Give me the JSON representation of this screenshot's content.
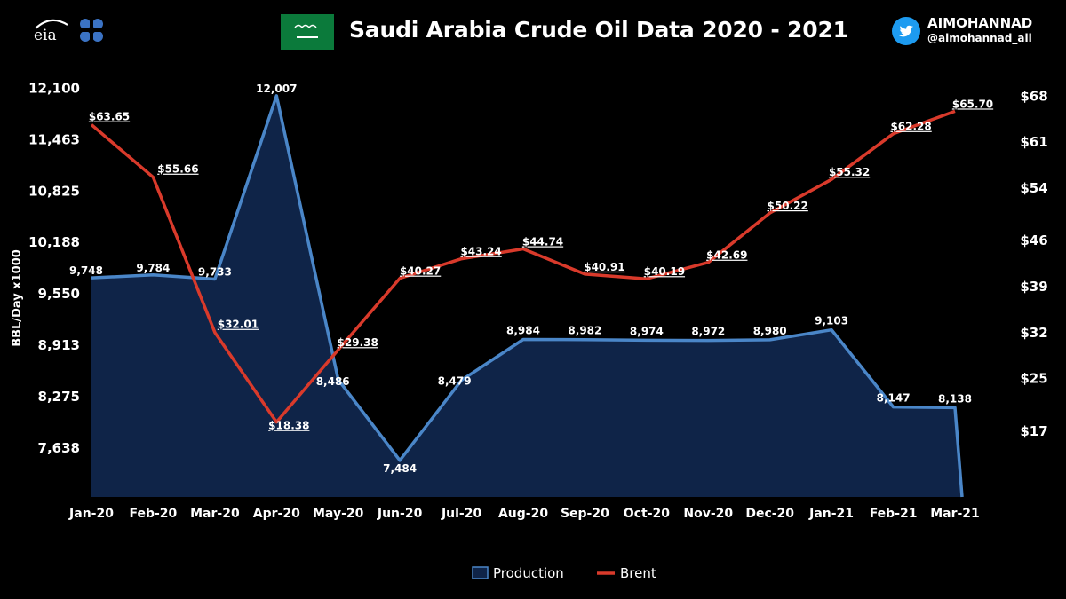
{
  "header": {
    "title": "Saudi Arabia Crude Oil Data 2020 - 2021",
    "author_name": "AIMOHANNAD",
    "author_handle": "@almohannad_ali"
  },
  "logos": {
    "eia_text": "eia",
    "flag_color": "#0b7a3b"
  },
  "chart_data": {
    "type": "line",
    "title": "Saudi Arabia Crude Oil Data 2020 - 2021",
    "categories": [
      "Jan-20",
      "Feb-20",
      "Mar-20",
      "Apr-20",
      "May-20",
      "Jun-20",
      "Jul-20",
      "Aug-20",
      "Sep-20",
      "Oct-20",
      "Nov-20",
      "Dec-20",
      "Jan-21",
      "Feb-21",
      "Mar-21"
    ],
    "ylabel": "BBL/Day x1000",
    "y_left": {
      "ticks": [
        "12,100",
        "11,463",
        "10,825",
        "10,188",
        "9,550",
        "8,913",
        "8,275",
        "7,638"
      ],
      "range": [
        7000,
        12100
      ]
    },
    "y_right": {
      "ticks": [
        "$68",
        "$61",
        "$54",
        "$46",
        "$39",
        "$32",
        "$25",
        "$17"
      ],
      "range": [
        10,
        68
      ]
    },
    "series": [
      {
        "name": "Production",
        "type": "area",
        "axis": "left",
        "color": "#4a86c8",
        "fill": "#0f2448",
        "values": [
          9748,
          9784,
          9733,
          12007,
          8486,
          7484,
          8479,
          8984,
          8982,
          8974,
          8972,
          8980,
          9103,
          8147,
          8138
        ],
        "labels": [
          "9,748",
          "9,784",
          "9,733",
          "12,007",
          "8,486",
          "7,484",
          "8,479",
          "8,984",
          "8,982",
          "8,974",
          "8,972",
          "8,980",
          "9,103",
          "8,147",
          "8,138"
        ]
      },
      {
        "name": "Brent",
        "type": "line",
        "axis": "right",
        "color": "#d93a2b",
        "values": [
          63.65,
          55.66,
          32.01,
          18.38,
          29.38,
          40.27,
          43.24,
          44.74,
          40.91,
          40.19,
          42.69,
          50.22,
          55.32,
          62.28,
          65.7
        ],
        "labels": [
          "$63.65",
          "$55.66",
          "$32.01",
          "$18.38",
          "$29.38",
          "$40.27",
          "$43.24",
          "$44.74",
          "$40.91",
          "$40.19",
          "$42.69",
          "$50.22",
          "$55.32",
          "$62.28",
          "$65.70"
        ]
      }
    ],
    "legend": [
      "Production",
      "Brent"
    ],
    "legend_position": "bottom-center",
    "grid": false
  }
}
